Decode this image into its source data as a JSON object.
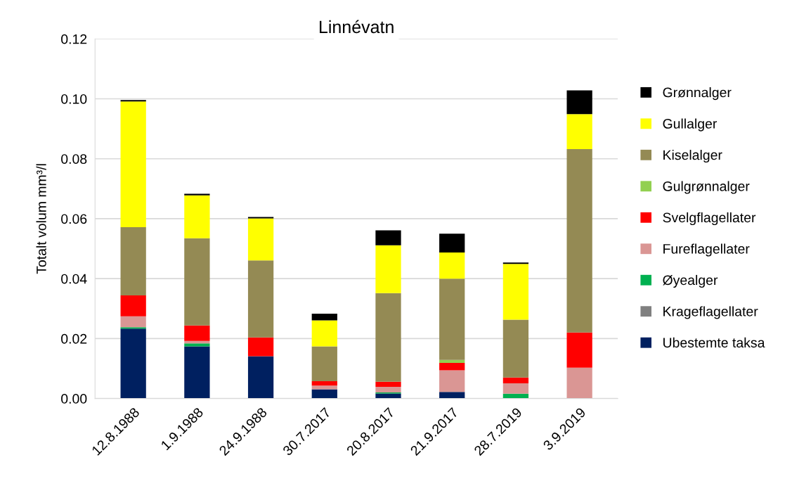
{
  "chart_data": {
    "type": "bar",
    "title": "Linnévatn",
    "ylabel": "Totalt volum mm³/l",
    "stacked": true,
    "categories": [
      "12.8.1988",
      "1.9.1988",
      "24.9.1988",
      "30.7.2017",
      "20.8.2017",
      "21.9.2017",
      "28.7.2019",
      "3.9.2019"
    ],
    "series": [
      {
        "name": "Ubestemte taksa",
        "color": "#002060",
        "values": [
          0.0233,
          0.0174,
          0.0141,
          0.0031,
          0.0017,
          0.0022,
          0,
          null
        ]
      },
      {
        "name": "Krageflagellater",
        "color": "#808080",
        "values": [
          0,
          0,
          0,
          0,
          0,
          0,
          0,
          0
        ]
      },
      {
        "name": "Øyealger",
        "color": "#00b050",
        "values": [
          0.0005,
          0.001,
          0,
          0,
          0.0003,
          0,
          0.0016,
          0
        ]
      },
      {
        "name": "Fureflagellater",
        "color": "#da9694",
        "values": [
          0.0036,
          0.0008,
          0,
          0.0012,
          0.0019,
          0.0072,
          0.0035,
          0.0103
        ]
      },
      {
        "name": "Svelgflagellater",
        "color": "#ff0000",
        "values": [
          0.007,
          0.0052,
          0.0063,
          0.0015,
          0.0017,
          0.0025,
          0.0019,
          0.0117
        ]
      },
      {
        "name": "Gulgrønnalger",
        "color": "#92d050",
        "values": [
          0,
          0,
          0,
          0,
          0,
          0.001,
          0,
          0
        ]
      },
      {
        "name": "Kiselalger",
        "color": "#948a54",
        "values": [
          0.0228,
          0.0291,
          0.0257,
          0.0116,
          0.0296,
          0.0271,
          0.0193,
          0.0612
        ]
      },
      {
        "name": "Gullalger",
        "color": "#ffff00",
        "values": [
          0.0419,
          0.0143,
          0.014,
          0.0087,
          0.0159,
          0.0087,
          0.0186,
          0.0117
        ]
      },
      {
        "name": "Grønnalger",
        "color": "#000000",
        "values": [
          0.0005,
          0.0005,
          0.0005,
          0.0022,
          0.005,
          0.0063,
          0.0005,
          0.0079
        ]
      }
    ],
    "ylim": [
      0,
      0.12
    ],
    "yticks": [
      {
        "value": 0,
        "label": "0.00"
      },
      {
        "value": 0.02,
        "label": "0.02"
      },
      {
        "value": 0.04,
        "label": "0.04"
      },
      {
        "value": 0.06,
        "label": "0.06"
      },
      {
        "value": 0.08,
        "label": "0.08"
      },
      {
        "value": 0.1,
        "label": "0.10"
      },
      {
        "value": 0.12,
        "label": "0.12"
      }
    ],
    "grid": "y",
    "legend": "right"
  }
}
